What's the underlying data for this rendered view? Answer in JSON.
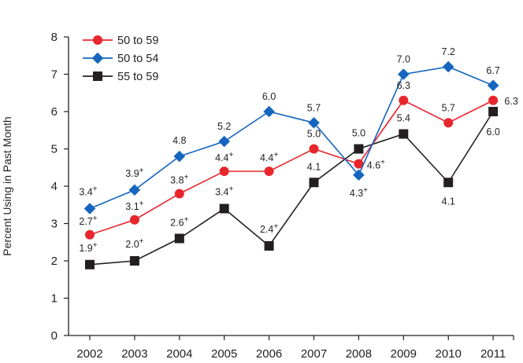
{
  "chart_data": {
    "type": "line",
    "title": "",
    "xlabel": "",
    "ylabel": "Percent Using in Past Month",
    "ylim": [
      0,
      8
    ],
    "yticks": [
      0,
      1,
      2,
      3,
      4,
      5,
      6,
      7,
      8
    ],
    "categories": [
      "2002",
      "2003",
      "2004",
      "2005",
      "2006",
      "2007",
      "2008",
      "2009",
      "2010",
      "2011"
    ],
    "legend_position": "top-left",
    "series": [
      {
        "name": "50 to 59",
        "color": "#e8262d",
        "marker": "circle",
        "values": [
          2.7,
          3.1,
          3.8,
          4.4,
          4.4,
          5.0,
          4.6,
          6.3,
          5.7,
          6.3
        ],
        "labels": [
          "2.7",
          "3.1",
          "3.8",
          "4.4",
          "4.4",
          "5.0",
          "4.6",
          "6.3",
          "5.7",
          "6.3"
        ],
        "plus": [
          true,
          true,
          true,
          true,
          true,
          false,
          true,
          false,
          false,
          false
        ]
      },
      {
        "name": "50 to 54",
        "color": "#1565c0",
        "marker": "diamond",
        "values": [
          3.4,
          3.9,
          4.8,
          5.2,
          6.0,
          5.7,
          4.3,
          7.0,
          7.2,
          6.7
        ],
        "labels": [
          "3.4",
          "3.9",
          "4.8",
          "5.2",
          "6.0",
          "5.7",
          "4.3",
          "7.0",
          "7.2",
          "6.7"
        ],
        "plus": [
          true,
          true,
          false,
          false,
          false,
          false,
          true,
          false,
          false,
          false
        ]
      },
      {
        "name": "55 to 59",
        "color": "#231f20",
        "marker": "square",
        "values": [
          1.9,
          2.0,
          2.6,
          3.4,
          2.4,
          4.1,
          5.0,
          5.4,
          4.1,
          6.0
        ],
        "labels": [
          "1.9",
          "2.0",
          "2.6",
          "3.4",
          "2.4",
          "4.1",
          "5.0",
          "5.4",
          "4.1",
          "6.0"
        ],
        "plus": [
          true,
          true,
          true,
          true,
          true,
          false,
          false,
          false,
          false,
          false
        ]
      }
    ],
    "plus_sign": "+"
  }
}
